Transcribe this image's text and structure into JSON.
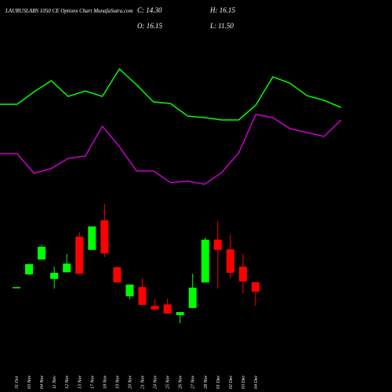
{
  "chart_data": [
    {
      "type": "candlestick",
      "title": "LAURUSLABS 1050 CE Options Chart MunafaSutra.com",
      "ohlc_labels": [
        "C: 14.30",
        "O: 16.15",
        "H: 16.15",
        "L: 11.50"
      ],
      "categories": [
        "31 Oct",
        "03 Nov",
        "04 Nov",
        "11 Nov",
        "12 Nov",
        "13 Nov",
        "17 Nov",
        "18 Nov",
        "19 Nov",
        "20 Nov",
        "21 Nov",
        "24 Nov",
        "25 Nov",
        "26 Nov",
        "27 Nov",
        "28 Nov",
        "01 Dec",
        "02 Dec",
        "03 Dec",
        "04 Dec"
      ],
      "open": [
        15.2,
        17.7,
        20.6,
        16.8,
        18.1,
        25.1,
        22.5,
        28.3,
        19.1,
        13.4,
        15.2,
        11.5,
        11.8,
        9.7,
        11.1,
        16.1,
        24.5,
        22.6,
        19.2,
        16.15
      ],
      "high": [
        15.2,
        19.8,
        23.5,
        19.2,
        21.7,
        26.0,
        27.1,
        31.5,
        19.2,
        15.7,
        16.9,
        12.8,
        12.9,
        10.3,
        17.8,
        24.9,
        28.1,
        25.5,
        21.7,
        16.15
      ],
      "low": [
        15.2,
        17.5,
        20.6,
        14.9,
        18.1,
        17.8,
        22.5,
        21.1,
        16.1,
        12.8,
        11.7,
        10.6,
        10.0,
        8.1,
        11.1,
        16.1,
        14.9,
        16.9,
        14.0,
        11.5
      ],
      "close": [
        15.2,
        19.7,
        23.1,
        18.0,
        19.8,
        17.8,
        27.1,
        21.8,
        16.1,
        15.7,
        11.7,
        10.8,
        10.0,
        10.3,
        15.1,
        24.5,
        22.5,
        18.0,
        16.3,
        14.3
      ],
      "up_color": "#00ff00",
      "down_color": "#ff0000",
      "ylim": [
        0,
        32.3
      ]
    },
    {
      "type": "line",
      "series": [
        {
          "color": "#00ff00",
          "values": [
            58.5,
            58.5,
            66.5,
            73.5,
            63.5,
            67,
            63.5,
            81,
            71,
            60,
            59,
            51,
            50,
            48.5,
            48.5,
            58,
            76,
            72,
            64,
            61,
            56.5
          ]
        },
        {
          "color": "#cc00cc",
          "values": [
            27,
            27,
            14.5,
            17.5,
            24,
            25.5,
            44.5,
            31.5,
            16,
            16,
            8.5,
            9.5,
            7.5,
            15,
            27.5,
            52,
            50,
            43,
            40.5,
            38,
            48.5
          ]
        }
      ],
      "ylim": [
        0,
        100
      ]
    }
  ]
}
